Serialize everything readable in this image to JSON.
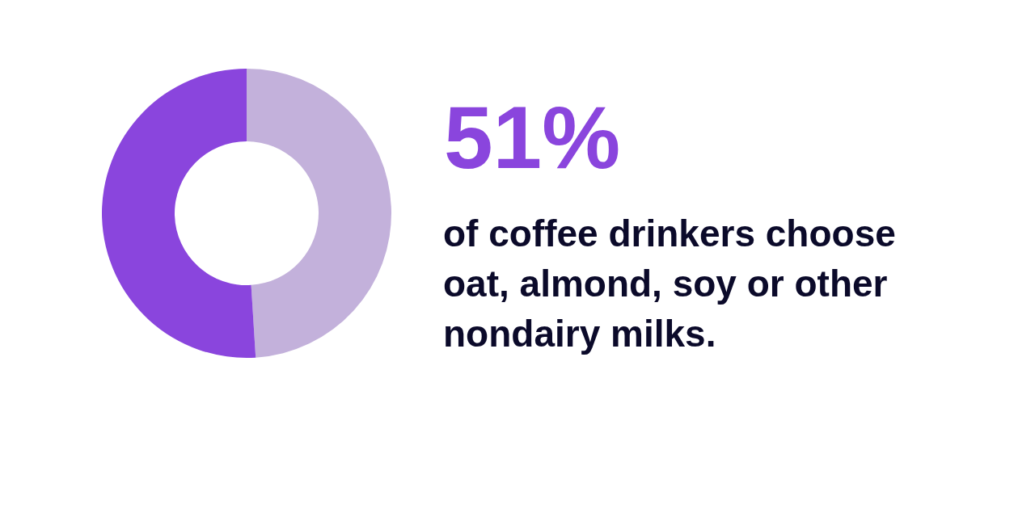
{
  "chart_data": {
    "type": "donut",
    "title": "51%",
    "subtitle": "of coffee drinkers choose oat, almond, soy or other nondairy milks.",
    "categories": [
      null,
      null
    ],
    "values": [
      49,
      51
    ],
    "colors": [
      "#c3b1db",
      "#8a45dd"
    ]
  }
}
